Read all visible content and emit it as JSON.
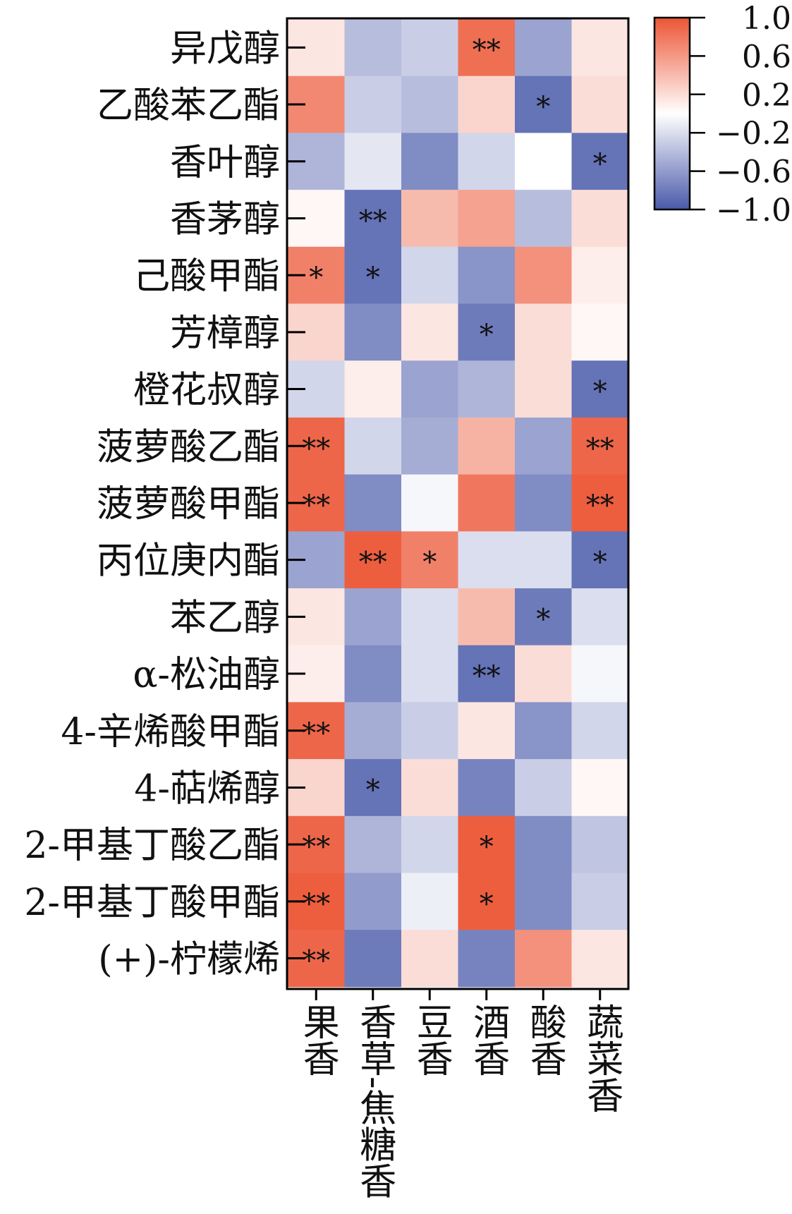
{
  "chart_data": {
    "type": "heatmap",
    "rows": [
      "异戊醇",
      "乙酸苯乙酯",
      "香叶醇",
      "香茅醇",
      "己酸甲酯",
      "芳樟醇",
      "橙花叔醇",
      "菠萝酸乙酯",
      "菠萝酸甲酯",
      "丙位庚内酯",
      "苯乙醇",
      "α-松油醇",
      "4-辛烯酸甲酯",
      "4-萜烯醇",
      "2-甲基丁酸乙酯",
      "2-甲基丁酸甲酯",
      "(+)-柠檬烯"
    ],
    "columns": [
      "果香",
      "香草-焦糖香",
      "豆香",
      "酒香",
      "酸香",
      "蔬菜香"
    ],
    "values": [
      [
        0.15,
        -0.4,
        -0.3,
        0.85,
        -0.55,
        0.15
      ],
      [
        0.7,
        -0.3,
        -0.4,
        0.25,
        -0.85,
        0.2
      ],
      [
        -0.45,
        -0.15,
        -0.7,
        -0.25,
        0.0,
        -0.85
      ],
      [
        0.05,
        -0.85,
        0.4,
        0.55,
        -0.4,
        0.2
      ],
      [
        0.75,
        -0.85,
        -0.25,
        -0.65,
        0.65,
        0.1
      ],
      [
        0.25,
        -0.7,
        0.15,
        -0.8,
        0.2,
        0.05
      ],
      [
        -0.25,
        0.1,
        -0.55,
        -0.45,
        0.2,
        -0.85
      ],
      [
        0.9,
        -0.25,
        -0.5,
        0.45,
        -0.55,
        0.9
      ],
      [
        0.9,
        -0.7,
        -0.05,
        0.8,
        -0.7,
        0.95
      ],
      [
        -0.55,
        0.95,
        0.75,
        -0.2,
        -0.2,
        -0.85
      ],
      [
        0.15,
        -0.55,
        -0.2,
        0.4,
        -0.8,
        -0.2
      ],
      [
        0.1,
        -0.7,
        -0.2,
        -0.85,
        0.2,
        -0.05
      ],
      [
        0.9,
        -0.5,
        -0.3,
        0.15,
        -0.65,
        -0.25
      ],
      [
        0.25,
        -0.85,
        0.2,
        -0.75,
        -0.3,
        0.05
      ],
      [
        0.9,
        -0.45,
        -0.25,
        0.95,
        -0.7,
        -0.35
      ],
      [
        0.95,
        -0.6,
        -0.1,
        0.95,
        -0.7,
        -0.3
      ],
      [
        0.9,
        -0.8,
        0.2,
        -0.75,
        0.65,
        0.15
      ]
    ],
    "significance": [
      [
        "",
        "",
        "",
        "**",
        "",
        ""
      ],
      [
        "",
        "",
        "",
        "",
        "*",
        ""
      ],
      [
        "",
        "",
        "",
        "",
        "",
        "*"
      ],
      [
        "",
        "**",
        "",
        "",
        "",
        ""
      ],
      [
        "*",
        "*",
        "",
        "",
        "",
        ""
      ],
      [
        "",
        "",
        "",
        "*",
        "",
        ""
      ],
      [
        "",
        "",
        "",
        "",
        "",
        "*"
      ],
      [
        "**",
        "",
        "",
        "",
        "",
        "**"
      ],
      [
        "**",
        "",
        "",
        "",
        "",
        "**"
      ],
      [
        "",
        "**",
        "*",
        "",
        "",
        "*"
      ],
      [
        "",
        "",
        "",
        "",
        "*",
        ""
      ],
      [
        "",
        "",
        "",
        "**",
        "",
        ""
      ],
      [
        "**",
        "",
        "",
        "",
        "",
        ""
      ],
      [
        "",
        "*",
        "",
        "",
        "",
        ""
      ],
      [
        "**",
        "",
        "",
        "*",
        "",
        ""
      ],
      [
        "**",
        "",
        "",
        "*",
        "",
        ""
      ],
      [
        "**",
        "",
        "",
        "",
        "",
        ""
      ]
    ],
    "scale": {
      "min": -1.0,
      "max": 1.0,
      "tick_labels": [
        "1.0",
        "0.6",
        "0.2",
        "−0.2",
        "−0.6",
        "−1.0"
      ],
      "colors": {
        "negative": "#4a5aaa",
        "neutral": "#ffffff",
        "positive": "#ec5535"
      }
    },
    "legend_position": "top-right",
    "grid": false
  }
}
